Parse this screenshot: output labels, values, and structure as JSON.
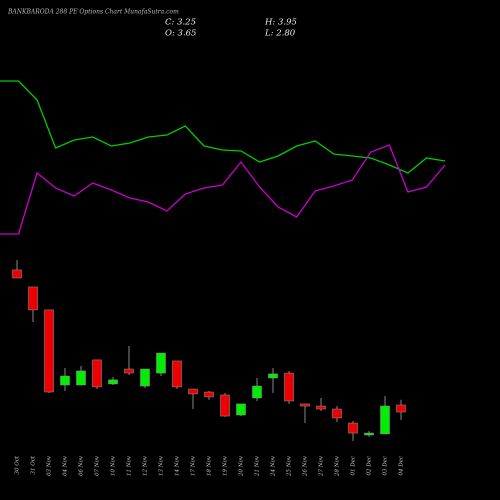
{
  "chart_data": {
    "type": "candlestick",
    "title": "BANKBARODA 288  PE Options Chart MunafaSutra.com",
    "ohlc_labels": [
      "C: 3.25",
      "H: 3.95",
      "O: 3.65",
      "L: 2.80"
    ],
    "categories": [
      "30 Oct",
      "31 Oct",
      "03 Nov",
      "04 Nov",
      "06 Nov",
      "07 Nov",
      "10 Nov",
      "11 Nov",
      "12 Nov",
      "13 Nov",
      "14 Nov",
      "17 Nov",
      "18 Nov",
      "19 Nov",
      "20 Nov",
      "21 Nov",
      "24 Nov",
      "25 Nov",
      "26 Nov",
      "27 Nov",
      "28 Nov",
      "01 Dec",
      "02 Dec",
      "03 Dec",
      "04 Dec"
    ],
    "open": [
      11.35,
      10.38,
      9.07,
      4.79,
      4.79,
      6.22,
      4.85,
      5.7,
      4.73,
      5.47,
      6.16,
      4.56,
      4.39,
      4.22,
      3.08,
      4.05,
      5.19,
      5.47,
      3.71,
      3.59,
      3.42,
      2.62,
      1.94,
      2.0,
      3.65
    ],
    "high": [
      11.92,
      10.38,
      9.07,
      5.76,
      5.87,
      6.22,
      5.25,
      7.01,
      5.7,
      6.61,
      6.16,
      4.56,
      4.45,
      4.33,
      3.71,
      5.19,
      5.76,
      5.59,
      3.71,
      4.05,
      3.59,
      2.74,
      2.17,
      4.16,
      3.95
    ],
    "low": [
      10.89,
      8.38,
      4.33,
      4.45,
      4.79,
      4.56,
      4.79,
      5.36,
      4.62,
      5.3,
      4.56,
      3.42,
      3.94,
      2.97,
      3.02,
      3.88,
      4.33,
      3.71,
      2.62,
      3.31,
      2.68,
      1.6,
      1.83,
      2.0,
      2.8
    ],
    "close": [
      10.89,
      9.07,
      4.39,
      5.3,
      5.59,
      4.68,
      5.08,
      5.47,
      5.7,
      6.61,
      4.68,
      4.28,
      4.11,
      3.02,
      3.71,
      4.73,
      5.42,
      3.88,
      3.59,
      3.42,
      2.91,
      2.05,
      2.05,
      3.59,
      3.25
    ],
    "up_color": "#00ee00",
    "down_color": "#ee0000",
    "ylim": [
      0,
      13
    ],
    "series": [
      {
        "color": "#00cc00",
        "axis": "y2",
        "values": [
          159,
          159,
          140,
          92,
          100,
          103,
          94,
          97,
          103,
          105,
          114,
          94,
          90,
          89,
          78,
          84,
          94,
          99,
          86,
          84,
          82,
          75,
          67,
          82,
          79
        ]
      },
      {
        "color": "#cc00cc",
        "axis": "y2",
        "values": [
          6,
          6,
          67,
          52,
          44,
          57,
          50,
          42,
          38,
          29,
          46,
          52,
          55,
          78,
          53,
          33,
          23,
          49,
          54,
          60,
          88,
          95,
          48,
          53,
          75
        ]
      }
    ],
    "y2lim": [
      0,
      170
    ]
  }
}
